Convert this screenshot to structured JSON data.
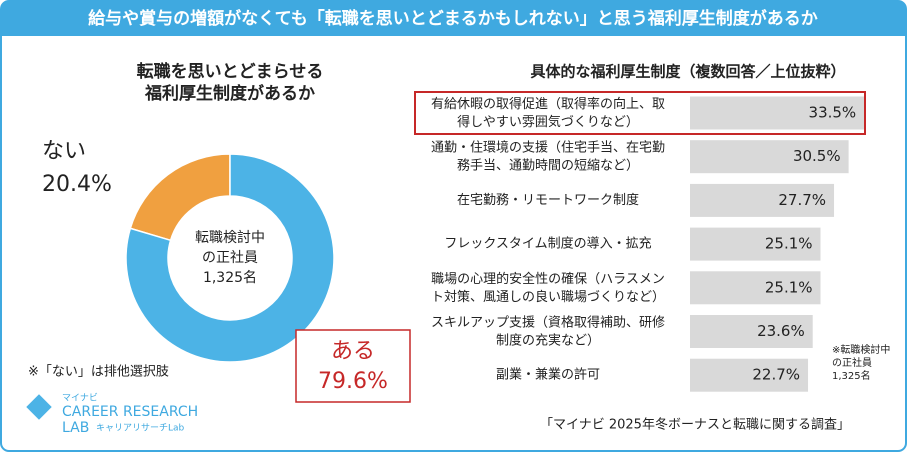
{
  "header": {
    "title": "給与や賞与の増額がなくても「転職を思いとどまるかもしれない」と思う福利厚生制度があるか"
  },
  "chart_data": [
    {
      "type": "pie",
      "title": [
        "転職を思いとどまらせる",
        "福利厚生制度があるか"
      ],
      "center_label": [
        "転職検討中",
        "の正社員",
        "1,325名"
      ],
      "categories": [
        "ない",
        "ある"
      ],
      "values": [
        20.4,
        79.6
      ],
      "value_labels": [
        "20.4%",
        "79.6%"
      ],
      "colors": [
        "#f0a040",
        "#4cb3e6"
      ],
      "donut": true,
      "annotation": "※「ない」は排他選択肢"
    },
    {
      "type": "hbar",
      "title": "具体的な福利厚生制度（複数回答／上位抜粋）",
      "categories": [
        "有給休暇の取得促進（取得率の向上、取\n得しやすい雰囲気づくりなど）",
        "通勤・住環境の支援（住宅手当、在宅勤\n務手当、通勤時間の短縮など）",
        "在宅勤務・リモートワーク制度",
        "フレックスタイム制度の導入・拡充",
        "職場の心理的安全性の確保（ハラスメン\nト対策、風通しの良い職場づくりなど）",
        "スキルアップ支援（資格取得補助、研修\n制度の充実など）",
        "副業・兼業の許可"
      ],
      "values": [
        33.5,
        30.5,
        27.7,
        25.1,
        25.1,
        23.6,
        22.7
      ],
      "value_labels": [
        "33.5%",
        "30.5%",
        "27.7%",
        "25.1%",
        "25.1%",
        "23.6%",
        "22.7%"
      ],
      "color": "#d9d9d9",
      "highlight": 0,
      "highlight_color": "#c62828",
      "annotation": [
        "※転職検討中",
        "の正社員",
        "1,325名"
      ]
    }
  ],
  "source": "「マイナビ 2025年冬ボーナスと転職に関する調査」",
  "logo": {
    "brand": "マイナビ",
    "line1": "CAREER RESEARCH",
    "line2": "LAB",
    "sub": "キャリアリサーチLab"
  }
}
